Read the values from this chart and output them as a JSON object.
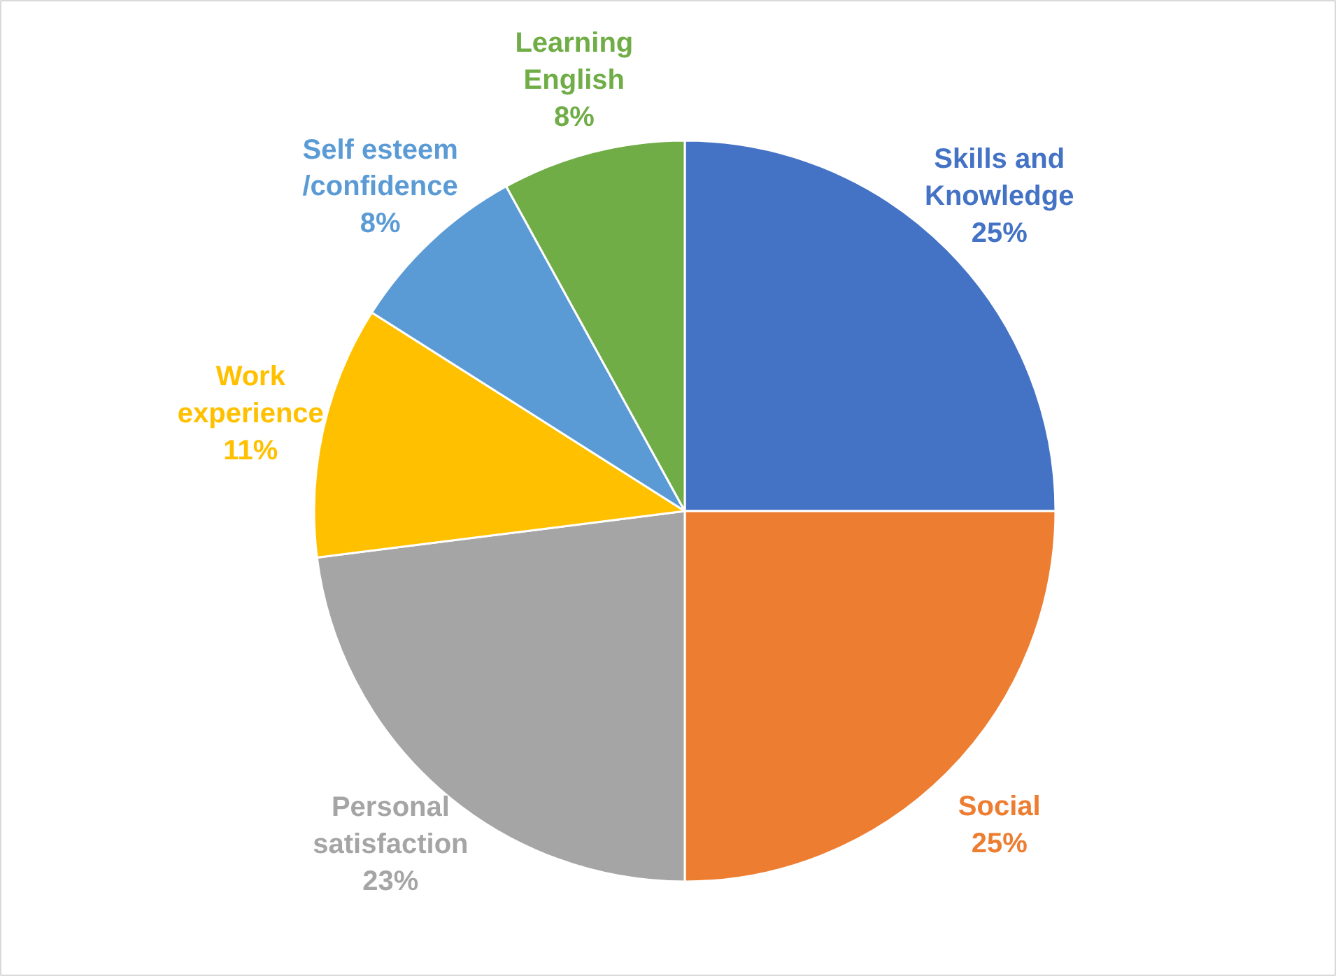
{
  "chart_data": {
    "type": "pie",
    "categories": [
      "Skills and Knowledge",
      "Social",
      "Personal satisfaction",
      "Work experience",
      "Self esteem /confidence",
      "Learning English"
    ],
    "values": [
      25,
      25,
      23,
      11,
      8,
      8
    ],
    "value_labels": [
      "25%",
      "25%",
      "23%",
      "11%",
      "8%",
      "8%"
    ],
    "colors": [
      "#4472c4",
      "#ed7d31",
      "#a5a5a5",
      "#ffc000",
      "#5b9bd5",
      "#70ad47"
    ]
  }
}
